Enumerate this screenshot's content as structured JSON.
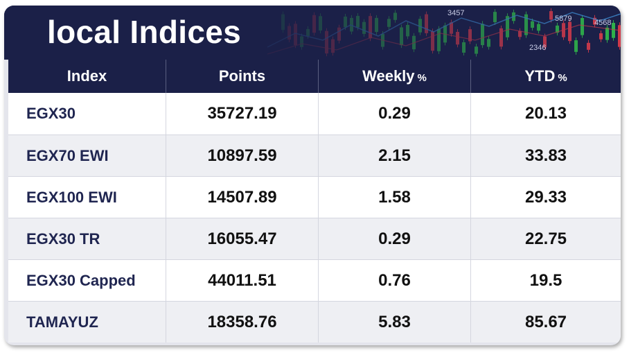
{
  "title": "local Indices",
  "columns": {
    "index": "Index",
    "points": "Points",
    "weekly": "Weekly",
    "weekly_unit": "%",
    "ytd": "YTD",
    "ytd_unit": "%"
  },
  "banner_numbers": [
    "3457",
    "5879",
    "4568",
    "2346"
  ],
  "rows": [
    {
      "index": "EGX30",
      "points": "35727.19",
      "weekly": "0.29",
      "ytd": "20.13"
    },
    {
      "index": "EGX70 EWI",
      "points": "10897.59",
      "weekly": "2.15",
      "ytd": "33.83"
    },
    {
      "index": "EGX100 EWI",
      "points": "14507.89",
      "weekly": "1.58",
      "ytd": "29.33"
    },
    {
      "index": "EGX30 TR",
      "points": "16055.47",
      "weekly": "0.29",
      "ytd": "22.75"
    },
    {
      "index": "EGX30 Capped",
      "points": "44011.51",
      "weekly": "0.76",
      "ytd": "19.5"
    },
    {
      "index": "TAMAYUZ",
      "points": "18358.76",
      "weekly": "5.83",
      "ytd": "85.67"
    }
  ],
  "colors": {
    "banner": "#1b2048",
    "candle_up": "#2fb34a",
    "candle_down": "#d23a4a",
    "row_text": "#111111"
  }
}
